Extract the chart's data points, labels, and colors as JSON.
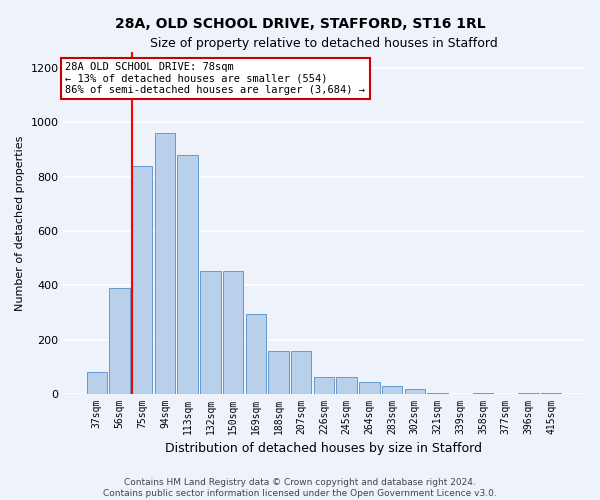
{
  "title": "28A, OLD SCHOOL DRIVE, STAFFORD, ST16 1RL",
  "subtitle": "Size of property relative to detached houses in Stafford",
  "xlabel": "Distribution of detached houses by size in Stafford",
  "ylabel": "Number of detached properties",
  "categories": [
    "37sqm",
    "56sqm",
    "75sqm",
    "94sqm",
    "113sqm",
    "132sqm",
    "150sqm",
    "169sqm",
    "188sqm",
    "207sqm",
    "226sqm",
    "245sqm",
    "264sqm",
    "283sqm",
    "302sqm",
    "321sqm",
    "339sqm",
    "358sqm",
    "377sqm",
    "396sqm",
    "415sqm"
  ],
  "values": [
    80,
    390,
    840,
    960,
    880,
    455,
    455,
    295,
    160,
    160,
    65,
    65,
    45,
    30,
    20,
    5,
    0,
    5,
    0,
    5,
    5
  ],
  "bar_color": "#b8d0ea",
  "bar_edge_color": "#6699cc",
  "red_line_index": 2,
  "annotation_text": "28A OLD SCHOOL DRIVE: 78sqm\n← 13% of detached houses are smaller (554)\n86% of semi-detached houses are larger (3,684) →",
  "annotation_box_color": "#ffffff",
  "annotation_box_edge": "#cc0000",
  "ylim": [
    0,
    1260
  ],
  "yticks": [
    0,
    200,
    400,
    600,
    800,
    1000,
    1200
  ],
  "footer1": "Contains HM Land Registry data © Crown copyright and database right 2024.",
  "footer2": "Contains public sector information licensed under the Open Government Licence v3.0.",
  "background_color": "#eef2fa",
  "grid_color": "#ffffff",
  "title_fontsize": 10,
  "subtitle_fontsize": 9,
  "ylabel_fontsize": 8,
  "xlabel_fontsize": 9,
  "tick_fontsize": 7,
  "annotation_fontsize": 7.5,
  "footer_fontsize": 6.5
}
